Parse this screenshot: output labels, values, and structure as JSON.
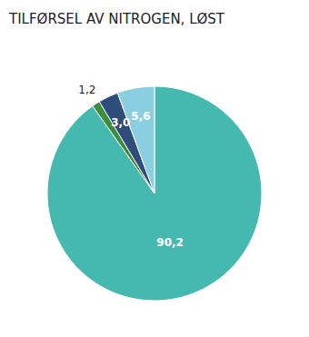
{
  "chart_data": {
    "type": "pie",
    "title": "TILFØRSEL AV NITROGEN, LØST",
    "values": [
      90.2,
      1.2,
      3.0,
      5.6
    ],
    "value_labels": [
      "90,2",
      "1,2",
      "3,0",
      "5,6"
    ],
    "colors": [
      "#45b8b0",
      "#3e8c3e",
      "#2e4d7b",
      "#8acfe0"
    ],
    "data_labels": true
  }
}
